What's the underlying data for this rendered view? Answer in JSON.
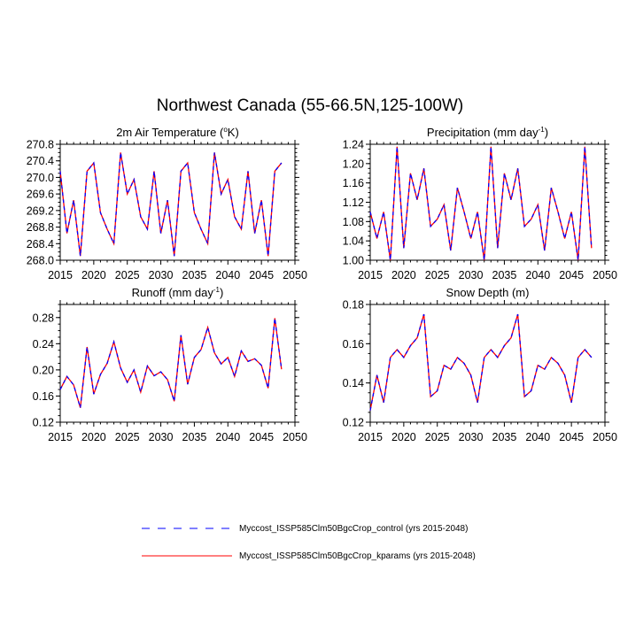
{
  "main_title": "Northwest Canada (55-66.5N,125-100W)",
  "legend": [
    {
      "label": "Myccost_ISSP585Clm50BgcCrop_control (yrs 2015-2048)",
      "color": "#0000ff",
      "style": "dashed"
    },
    {
      "label": "Myccost_ISSP585Clm50BgcCrop_kparams (yrs 2015-2048)",
      "color": "#ff0000",
      "style": "solid"
    }
  ],
  "chart_data": [
    {
      "type": "line",
      "title": {
        "pre": "2m Air Temperature (",
        "sup": "o",
        "post": "K)"
      },
      "xlim": [
        2015,
        2050
      ],
      "xticks": [
        "2015",
        "2020",
        "2025",
        "2030",
        "2035",
        "2040",
        "2045",
        "2050"
      ],
      "ylim": [
        268.0,
        270.8
      ],
      "yticks": [
        "268.0",
        "268.4",
        "268.8",
        "269.2",
        "269.6",
        "270.0",
        "270.4",
        "270.8"
      ],
      "x_start": 2015,
      "series": [
        {
          "name": "control",
          "values": [
            270.15,
            268.65,
            269.45,
            268.1,
            270.15,
            270.35,
            269.15,
            268.75,
            268.4,
            270.6,
            269.6,
            269.95,
            269.05,
            268.75,
            270.15,
            268.65,
            269.45,
            268.1,
            270.15,
            270.35,
            269.15,
            268.75,
            268.4,
            270.6,
            269.6,
            269.95,
            269.05,
            268.75,
            270.15,
            268.65,
            269.45,
            268.1,
            270.15,
            270.35
          ]
        },
        {
          "name": "kparams",
          "values": [
            270.15,
            268.65,
            269.45,
            268.1,
            270.15,
            270.35,
            269.15,
            268.75,
            268.4,
            270.6,
            269.6,
            269.95,
            269.05,
            268.75,
            270.15,
            268.65,
            269.45,
            268.1,
            270.15,
            270.35,
            269.15,
            268.75,
            268.4,
            270.6,
            269.6,
            269.95,
            269.05,
            268.75,
            270.15,
            268.65,
            269.45,
            268.1,
            270.15,
            270.35
          ]
        }
      ]
    },
    {
      "type": "line",
      "title": {
        "pre": "Precipitation (mm day",
        "sup": "-1",
        "post": ")"
      },
      "xlim": [
        2015,
        2050
      ],
      "xticks": [
        "2015",
        "2020",
        "2025",
        "2030",
        "2035",
        "2040",
        "2045",
        "2050"
      ],
      "ylim": [
        1.0,
        1.24
      ],
      "yticks": [
        "1.00",
        "1.04",
        "1.08",
        "1.12",
        "1.16",
        "1.20",
        "1.24"
      ],
      "x_start": 2015,
      "series": [
        {
          "name": "control",
          "values": [
            1.1,
            1.045,
            1.1,
            1.0,
            1.235,
            1.025,
            1.18,
            1.125,
            1.19,
            1.07,
            1.085,
            1.115,
            1.02,
            1.15,
            1.1,
            1.045,
            1.1,
            1.0,
            1.235,
            1.025,
            1.18,
            1.125,
            1.19,
            1.07,
            1.085,
            1.115,
            1.02,
            1.15,
            1.1,
            1.045,
            1.1,
            1.0,
            1.235,
            1.025
          ]
        },
        {
          "name": "kparams",
          "values": [
            1.1,
            1.045,
            1.1,
            1.0,
            1.235,
            1.025,
            1.18,
            1.125,
            1.19,
            1.07,
            1.085,
            1.115,
            1.02,
            1.15,
            1.1,
            1.045,
            1.1,
            1.0,
            1.235,
            1.025,
            1.18,
            1.125,
            1.19,
            1.07,
            1.085,
            1.115,
            1.02,
            1.15,
            1.1,
            1.045,
            1.1,
            1.0,
            1.235,
            1.025
          ]
        }
      ]
    },
    {
      "type": "line",
      "title": {
        "pre": "Runoff (mm day",
        "sup": "-1",
        "post": ")"
      },
      "xlim": [
        2015,
        2050
      ],
      "xticks": [
        "2015",
        "2020",
        "2025",
        "2030",
        "2035",
        "2040",
        "2045",
        "2050"
      ],
      "ylim": [
        0.12,
        0.3
      ],
      "yticks": [
        "0.12",
        "0.16",
        "0.20",
        "0.24",
        "0.28"
      ],
      "ytick_values": [
        0.12,
        0.16,
        0.2,
        0.24,
        0.28
      ],
      "x_start": 2015,
      "series": [
        {
          "name": "control",
          "values": [
            0.17,
            0.19,
            0.177,
            0.142,
            0.235,
            0.163,
            0.193,
            0.21,
            0.243,
            0.203,
            0.181,
            0.2,
            0.166,
            0.206,
            0.191,
            0.197,
            0.185,
            0.152,
            0.253,
            0.178,
            0.219,
            0.231,
            0.265,
            0.226,
            0.209,
            0.219,
            0.19,
            0.229,
            0.213,
            0.217,
            0.207,
            0.172,
            0.279,
            0.201
          ]
        },
        {
          "name": "kparams",
          "values": [
            0.17,
            0.19,
            0.177,
            0.142,
            0.235,
            0.163,
            0.193,
            0.21,
            0.243,
            0.203,
            0.181,
            0.2,
            0.166,
            0.206,
            0.191,
            0.197,
            0.185,
            0.152,
            0.253,
            0.178,
            0.219,
            0.231,
            0.265,
            0.226,
            0.209,
            0.219,
            0.19,
            0.229,
            0.213,
            0.217,
            0.207,
            0.172,
            0.279,
            0.201
          ]
        }
      ]
    },
    {
      "type": "line",
      "title": {
        "pre": "Snow Depth (m)",
        "sup": "",
        "post": ""
      },
      "xlim": [
        2015,
        2050
      ],
      "xticks": [
        "2015",
        "2020",
        "2025",
        "2030",
        "2035",
        "2040",
        "2045",
        "2050"
      ],
      "ylim": [
        0.12,
        0.18
      ],
      "yticks": [
        "0.12",
        "0.14",
        "0.16",
        "0.18"
      ],
      "x_start": 2015,
      "series": [
        {
          "name": "control",
          "values": [
            0.126,
            0.144,
            0.13,
            0.153,
            0.157,
            0.153,
            0.159,
            0.163,
            0.175,
            0.133,
            0.136,
            0.149,
            0.147,
            0.153,
            0.15,
            0.144,
            0.13,
            0.153,
            0.157,
            0.153,
            0.159,
            0.163,
            0.175,
            0.133,
            0.136,
            0.149,
            0.147,
            0.153,
            0.15,
            0.144,
            0.13,
            0.153,
            0.157,
            0.153
          ]
        },
        {
          "name": "kparams",
          "values": [
            0.126,
            0.144,
            0.13,
            0.153,
            0.157,
            0.153,
            0.159,
            0.163,
            0.175,
            0.133,
            0.136,
            0.149,
            0.147,
            0.153,
            0.15,
            0.144,
            0.13,
            0.153,
            0.157,
            0.153,
            0.159,
            0.163,
            0.175,
            0.133,
            0.136,
            0.149,
            0.147,
            0.153,
            0.15,
            0.144,
            0.13,
            0.153,
            0.157,
            0.153
          ]
        }
      ]
    }
  ]
}
